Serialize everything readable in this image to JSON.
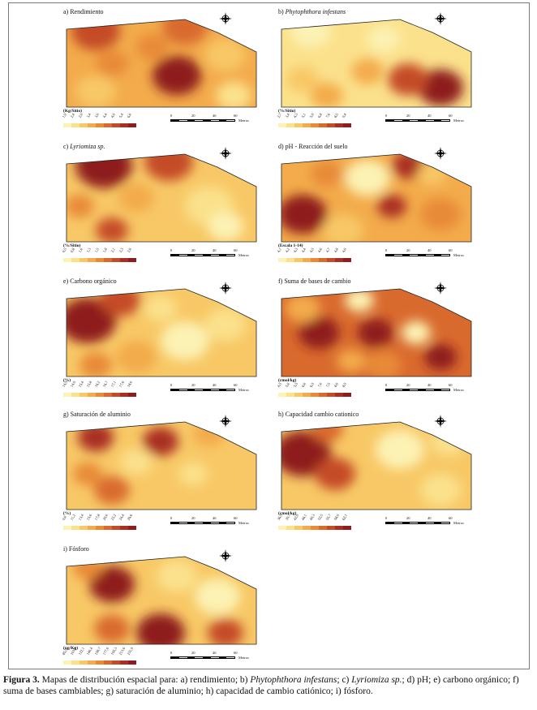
{
  "panels": [
    {
      "id": "a",
      "prefix": "a) ",
      "title": "Rendimiento",
      "italic": false,
      "unit": "(Kg/Sitio)",
      "ticks": [
        "1,9",
        "2,4",
        "2,9",
        "3,4",
        "3,9",
        "4,4",
        "4,9",
        "5,4",
        "6,0"
      ],
      "scale": [
        "0",
        "20",
        "40",
        "60"
      ],
      "scale_unit": "Metros"
    },
    {
      "id": "b",
      "prefix": "b) ",
      "title": "Phytophthora infestans",
      "italic": true,
      "unit": "(%/Sitio)",
      "ticks": [
        "2,7",
        "3,4",
        "4,3",
        "5,1",
        "5,9",
        "6,8",
        "7,6",
        "8,5",
        "9,4"
      ],
      "scale": [
        "0",
        "20",
        "40",
        "60"
      ],
      "scale_unit": "Metros"
    },
    {
      "id": "c",
      "prefix": "c) ",
      "title": "Lyriomiza sp.",
      "italic": true,
      "unit": "(%/Sitio)",
      "ticks": [
        "0,5",
        "0,8",
        "1,0",
        "1,3",
        "1,5",
        "1,8",
        "2,1",
        "2,3",
        "2,6"
      ],
      "scale": [
        "0",
        "20",
        "40",
        "60"
      ],
      "scale_unit": "Metros"
    },
    {
      "id": "d",
      "prefix": "d) ",
      "title": "pH - Reacción del suelo",
      "italic": false,
      "unit": "(Escala 1-14)",
      "ticks": [
        "4,1",
        "4,2",
        "4,3",
        "4,4",
        "4,5",
        "4,6",
        "4,7",
        "4,8",
        "4,9"
      ],
      "scale": [
        "0",
        "20",
        "40",
        "60"
      ],
      "scale_unit": "Metros"
    },
    {
      "id": "e",
      "prefix": "e) ",
      "title": "Carbono orgánico",
      "italic": false,
      "unit": "(%)",
      "ticks": [
        "14,5",
        "14,9",
        "15,4",
        "15,8",
        "16,2",
        "16,7",
        "17,1",
        "17,6",
        "18,0"
      ],
      "scale": [
        "0",
        "20",
        "40",
        "60"
      ],
      "scale_unit": "Metros"
    },
    {
      "id": "f",
      "prefix": "f) ",
      "title": "Suma de bases de cambio",
      "italic": false,
      "unit": "(cmol/kg)",
      "ticks": [
        "4,5",
        "5,0",
        "5,5",
        "6,0",
        "6,5",
        "7,0",
        "7,5",
        "8,0",
        "8,5"
      ],
      "scale": [
        "0",
        "20",
        "40",
        "60"
      ],
      "scale_unit": "Metros"
    },
    {
      "id": "g",
      "prefix": "g) ",
      "title": "Saturación de aluminio",
      "italic": false,
      "unit": "(%)",
      "ticks": [
        "9,0",
        "11,2",
        "13,4",
        "15,6",
        "17,8",
        "20,0",
        "22,2",
        "24,4",
        "26,6"
      ],
      "scale": [
        "0",
        "20",
        "40",
        "60"
      ],
      "scale_unit": "Metros"
    },
    {
      "id": "h",
      "prefix": "h) ",
      "title": "Capacidad cambio cationico",
      "italic": false,
      "unit": "(cmol/kg)",
      "ticks": [
        "36,5",
        "39,7",
        "42,9",
        "46,1",
        "49,3",
        "52,5",
        "55,7",
        "58,9",
        "62,1"
      ],
      "scale": [
        "0",
        "20",
        "40",
        "60"
      ],
      "scale_unit": "Metros"
    },
    {
      "id": "i",
      "prefix": "i) ",
      "title": "Fósforo",
      "italic": false,
      "unit": "(ug/Kg)",
      "ticks": [
        "85,5",
        "103,8",
        "122,1",
        "140,4",
        "158,7",
        "177,0",
        "195,3",
        "213,6",
        "231,9"
      ],
      "scale": [
        "0",
        "20",
        "40",
        "60"
      ],
      "scale_unit": "Metros"
    }
  ],
  "palette": [
    "#fcf2b4",
    "#fbe18c",
    "#f8c866",
    "#f3ab4b",
    "#e88a38",
    "#d96a2e",
    "#c44b27",
    "#a92f22",
    "#8e1d1e"
  ],
  "caption": {
    "label": "Figura 3.",
    "text_parts": [
      {
        "t": " Mapas de distribución espacial para: a) rendimiento; b) ",
        "i": false
      },
      {
        "t": "Phytophthora infestans",
        "i": true
      },
      {
        "t": "; c) ",
        "i": false
      },
      {
        "t": "Lyriomiza sp.",
        "i": true
      },
      {
        "t": "; d) pH; e) carbono orgánico; f) suma de bases cambiables; g) saturación de aluminio; h) capacidad de cambio catiónico; i) fósforo.",
        "i": false
      }
    ]
  }
}
